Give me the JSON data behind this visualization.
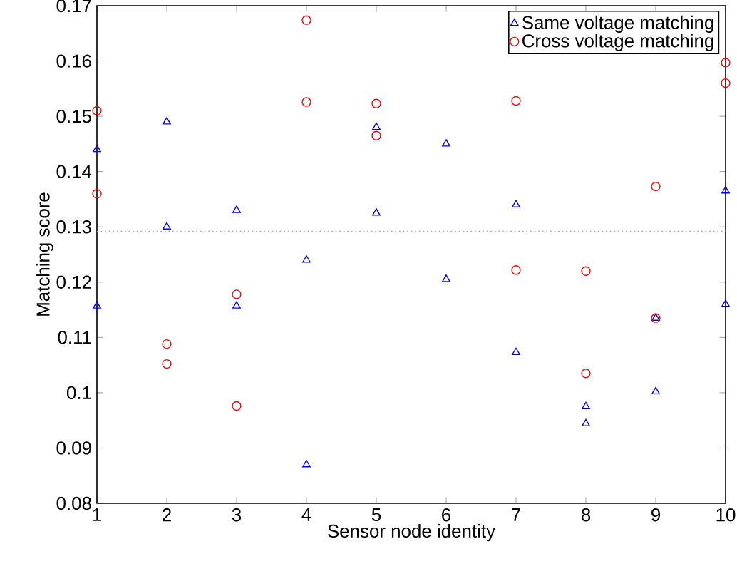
{
  "chart_data": {
    "type": "scatter",
    "xlabel": "Sensor node identity",
    "ylabel": "Matching score",
    "xlim": [
      1,
      10
    ],
    "ylim": [
      0.08,
      0.17
    ],
    "xticks": [
      1,
      2,
      3,
      4,
      5,
      6,
      7,
      8,
      9,
      10
    ],
    "yticks": [
      0.08,
      0.09,
      0.1,
      0.11,
      0.12,
      0.13,
      0.14,
      0.15,
      0.16,
      0.17
    ],
    "legend": "top right",
    "grid": false,
    "series": [
      {
        "name": "Same voltage matching",
        "color": "#0000ff",
        "marker": "triangle",
        "x": [
          1,
          1,
          2,
          2,
          3,
          3,
          4,
          4,
          5,
          5,
          6,
          6,
          7,
          7,
          8,
          8,
          9,
          9,
          10,
          10
        ],
        "values": [
          0.144,
          0.1157,
          0.149,
          0.13,
          0.133,
          0.1157,
          0.124,
          0.087,
          0.148,
          0.1325,
          0.145,
          0.1205,
          0.134,
          0.1073,
          0.0975,
          0.0944,
          0.1135,
          0.1002,
          0.1365,
          0.116
        ]
      },
      {
        "name": "Cross voltage matching",
        "color": "#ff0000",
        "marker": "circle",
        "x": [
          1,
          1,
          2,
          2,
          3,
          3,
          4,
          4,
          5,
          5,
          7,
          7,
          8,
          8,
          9,
          9,
          10,
          10
        ],
        "values": [
          0.151,
          0.136,
          0.1088,
          0.1052,
          0.1178,
          0.0976,
          0.1674,
          0.1526,
          0.1523,
          0.1465,
          0.1528,
          0.1222,
          0.122,
          0.1035,
          0.1373,
          0.1135,
          0.1597,
          0.156
        ]
      }
    ],
    "ref_lines": [
      {
        "axis": "y",
        "value": 0.1292,
        "color": "#a0a0a0",
        "line_style": "dotted"
      }
    ]
  }
}
